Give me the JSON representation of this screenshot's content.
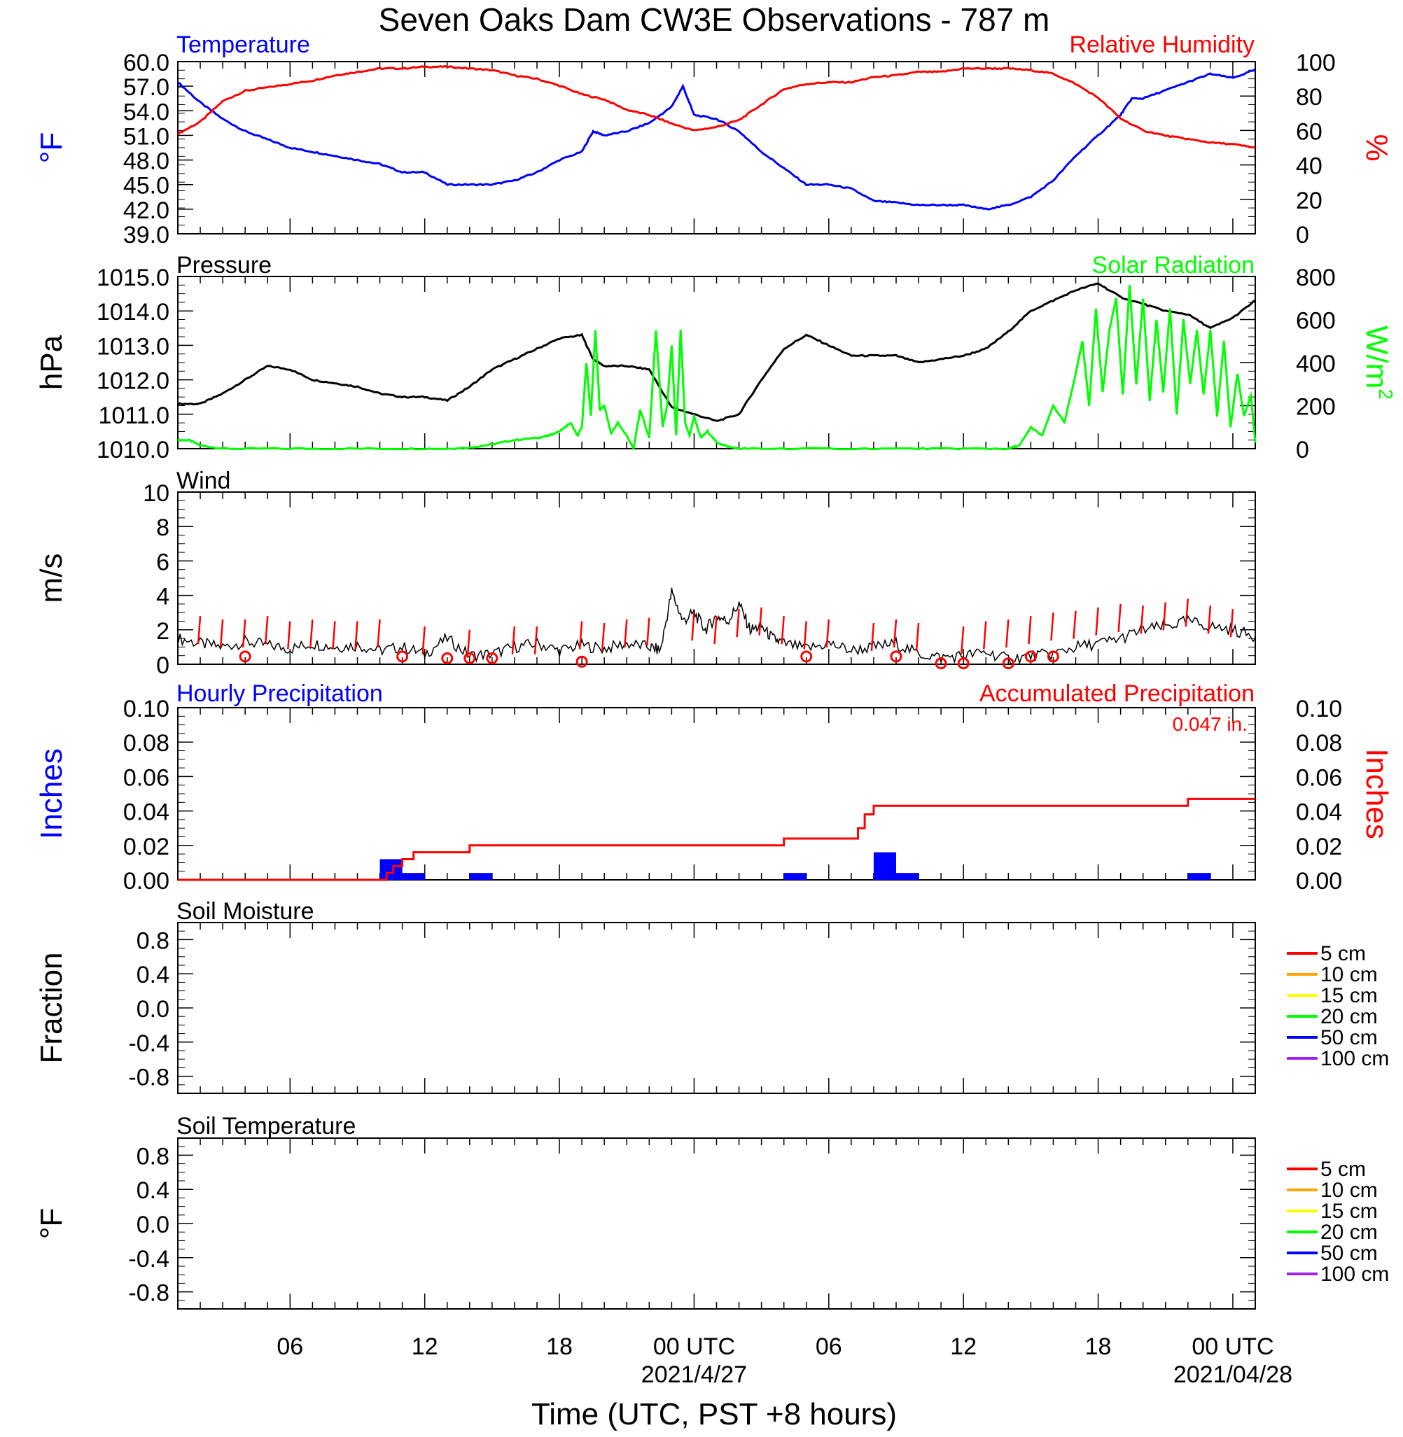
{
  "figure": {
    "title": "Seven Oaks Dam CW3E Observations - 787 m",
    "xlabel": "Time (UTC, PST +8 hours)",
    "x_ticks": [
      {
        "hour": 6,
        "label": "06",
        "sub": ""
      },
      {
        "hour": 12,
        "label": "12",
        "sub": ""
      },
      {
        "hour": 18,
        "label": "18",
        "sub": ""
      },
      {
        "hour": 24,
        "label": "00 UTC",
        "sub": "2021/4/27"
      },
      {
        "hour": 30,
        "label": "06",
        "sub": ""
      },
      {
        "hour": 36,
        "label": "12",
        "sub": ""
      },
      {
        "hour": 42,
        "label": "18",
        "sub": ""
      },
      {
        "hour": 48,
        "label": "00 UTC",
        "sub": "2021/04/28"
      }
    ],
    "x_range_hours": [
      1,
      49
    ]
  },
  "chart_data": [
    {
      "type": "line",
      "id": "temp_rh",
      "left_title": "Temperature",
      "right_title": "Relative Humidity",
      "left_label": "°F",
      "right_label": "%",
      "left_color": "#0000ff",
      "right_color": "#ff0000",
      "left_ticks": [
        "60.0",
        "57.0",
        "54.0",
        "51.0",
        "48.0",
        "45.0",
        "42.0",
        "39.0"
      ],
      "right_ticks": [
        "100",
        "80",
        "60",
        "40",
        "20",
        "0"
      ],
      "ylim_left": [
        39,
        60
      ],
      "ylim_right": [
        0,
        100
      ],
      "series": [
        {
          "name": "Temperature",
          "axis": "left",
          "color": "#0000ff",
          "x": [
            1,
            2,
            3,
            4,
            5,
            6,
            7,
            8,
            9,
            10,
            11,
            12,
            13,
            14,
            15,
            16,
            17,
            18,
            19,
            19.5,
            20,
            21,
            22,
            23,
            23.5,
            24,
            25,
            26,
            27,
            28,
            29,
            30,
            31,
            32,
            33,
            34,
            35,
            36,
            37,
            38,
            39,
            40,
            41,
            42,
            43,
            43.5,
            44,
            45,
            46,
            47,
            48,
            49
          ],
          "y": [
            57.5,
            55.0,
            53.0,
            51.5,
            50.5,
            49.5,
            49.0,
            48.5,
            48.0,
            47.5,
            46.5,
            46.5,
            45.0,
            45.0,
            45.0,
            45.5,
            46.5,
            48.0,
            49.0,
            51.5,
            51.0,
            51.5,
            52.5,
            54.5,
            57.0,
            53.5,
            53.0,
            51.5,
            49.0,
            47.0,
            45.0,
            45.0,
            44.5,
            43.0,
            42.8,
            42.5,
            42.5,
            42.5,
            42.0,
            42.5,
            43.5,
            45.5,
            48.5,
            51.0,
            53.5,
            55.5,
            55.5,
            56.5,
            57.5,
            58.5,
            58.0,
            59.0
          ]
        },
        {
          "name": "Relative Humidity",
          "axis": "right",
          "color": "#ff0000",
          "x": [
            1,
            2,
            3,
            4,
            5,
            6,
            7,
            8,
            9,
            10,
            11,
            12,
            13,
            14,
            15,
            16,
            17,
            18,
            19,
            20,
            21,
            22,
            23,
            24,
            25,
            26,
            27,
            28,
            29,
            30,
            31,
            32,
            33,
            34,
            35,
            36,
            37,
            38,
            39,
            40,
            41,
            42,
            43,
            44,
            45,
            46,
            47,
            48,
            49
          ],
          "y": [
            58,
            65,
            77,
            83,
            85,
            87,
            89,
            92,
            94,
            96,
            96,
            97,
            97,
            96,
            95,
            92,
            90,
            86,
            81,
            78,
            72,
            69,
            64,
            60,
            62,
            66,
            75,
            84,
            87,
            88,
            88,
            91,
            92,
            94,
            94,
            96,
            96,
            96,
            95,
            93,
            87,
            79,
            67,
            60,
            57,
            55,
            53,
            52,
            50
          ]
        }
      ]
    },
    {
      "type": "line",
      "id": "pressure_solar",
      "left_title": "Pressure",
      "right_title": "Solar Radiation",
      "left_label": "hPa",
      "right_label": "W/m",
      "right_label_sup": "2",
      "left_color": "#000000",
      "right_color": "#00ff00",
      "left_ticks": [
        "1015.0",
        "1014.0",
        "1013.0",
        "1012.0",
        "1011.0",
        "1010.0"
      ],
      "right_ticks": [
        "800",
        "600",
        "400",
        "200",
        "0"
      ],
      "ylim_left": [
        1010,
        1015
      ],
      "ylim_right": [
        0,
        800
      ],
      "series": [
        {
          "name": "Pressure",
          "axis": "left",
          "color": "#000000",
          "x": [
            1,
            2,
            3,
            4,
            5,
            6,
            7,
            8,
            9,
            10,
            11,
            12,
            13,
            14,
            15,
            16,
            17,
            18,
            19,
            19.5,
            20,
            21,
            22,
            23,
            24,
            25,
            26,
            27,
            28,
            29,
            30,
            31,
            32,
            33,
            34,
            35,
            36,
            37,
            38,
            39,
            40,
            41,
            42,
            43,
            44,
            45,
            46,
            47,
            48,
            49
          ],
          "y": [
            1011.3,
            1011.3,
            1011.6,
            1012.0,
            1012.4,
            1012.3,
            1012.0,
            1011.9,
            1011.8,
            1011.6,
            1011.5,
            1011.5,
            1011.4,
            1011.8,
            1012.3,
            1012.6,
            1012.9,
            1013.2,
            1013.3,
            1012.6,
            1012.4,
            1012.4,
            1012.3,
            1011.2,
            1011.0,
            1010.8,
            1011.0,
            1012.0,
            1012.9,
            1013.3,
            1013.0,
            1012.7,
            1012.7,
            1012.7,
            1012.5,
            1012.6,
            1012.7,
            1012.9,
            1013.4,
            1014.0,
            1014.3,
            1014.6,
            1014.8,
            1014.4,
            1014.2,
            1014.0,
            1013.9,
            1013.5,
            1013.8,
            1014.3
          ]
        },
        {
          "name": "Solar Radiation",
          "axis": "right",
          "color": "#00ff00",
          "x": [
            1,
            1.5,
            2,
            3,
            5,
            8,
            11,
            13,
            14,
            15,
            16,
            17,
            17.5,
            18,
            18.5,
            18.8,
            19,
            19.2,
            19.4,
            19.6,
            19.8,
            20,
            20.3,
            20.6,
            21,
            21.3,
            21.6,
            22,
            22.3,
            22.6,
            22.8,
            23,
            23.2,
            23.4,
            23.6,
            23.8,
            24,
            24.3,
            24.6,
            25,
            25.5,
            26,
            27,
            30,
            34,
            36,
            38,
            38.5,
            39,
            39.5,
            40,
            40.5,
            41,
            41.3,
            41.6,
            41.9,
            42.2,
            42.5,
            42.8,
            43.1,
            43.4,
            43.7,
            44,
            44.3,
            44.6,
            44.9,
            45.2,
            45.5,
            45.8,
            46.1,
            46.4,
            46.7,
            47,
            47.3,
            47.6,
            47.9,
            48.2,
            48.5,
            48.8,
            49
          ],
          "y": [
            40,
            40,
            15,
            0,
            0,
            0,
            0,
            0,
            5,
            20,
            40,
            50,
            60,
            80,
            120,
            60,
            100,
            400,
            150,
            550,
            180,
            200,
            70,
            120,
            60,
            0,
            180,
            50,
            550,
            100,
            200,
            480,
            60,
            550,
            120,
            60,
            150,
            50,
            80,
            30,
            10,
            0,
            0,
            0,
            0,
            0,
            0,
            15,
            100,
            60,
            200,
            120,
            350,
            500,
            200,
            650,
            260,
            550,
            700,
            250,
            760,
            300,
            700,
            220,
            600,
            260,
            650,
            160,
            600,
            300,
            550,
            250,
            550,
            150,
            500,
            100,
            350,
            150,
            250,
            30
          ]
        }
      ]
    },
    {
      "type": "line",
      "id": "wind",
      "left_title": "Wind",
      "left_label": "m/s",
      "left_ticks": [
        "10",
        "8",
        "6",
        "4",
        "2",
        "0"
      ],
      "ylim": [
        0,
        10
      ],
      "series": [
        {
          "name": "Wind",
          "color": "#000000",
          "x": [
            1,
            2,
            3,
            4,
            5,
            6,
            7,
            8,
            9,
            10,
            11,
            12,
            13,
            14,
            15,
            16,
            17,
            18,
            19,
            20,
            21,
            22,
            22.5,
            23,
            23.5,
            24,
            24.5,
            25,
            25.5,
            26,
            26.5,
            27,
            27.5,
            28,
            29,
            30,
            31,
            32,
            33,
            34,
            35,
            36,
            37,
            38,
            39,
            40,
            41,
            42,
            43,
            44,
            45,
            46,
            47,
            48,
            49
          ],
          "y": [
            1.5,
            1.2,
            1.0,
            1.3,
            1.1,
            0.9,
            1.2,
            1.0,
            1.1,
            0.8,
            1.0,
            0.6,
            1.5,
            0.5,
            0.6,
            1.0,
            1.2,
            0.8,
            1.1,
            0.9,
            1.2,
            1.0,
            0.8,
            4.2,
            2.5,
            3.0,
            2.0,
            2.8,
            2.5,
            3.5,
            2.0,
            2.2,
            1.5,
            1.2,
            0.9,
            1.2,
            0.8,
            1.0,
            1.2,
            0.6,
            0.4,
            0.5,
            0.7,
            0.3,
            0.5,
            0.6,
            1.0,
            1.2,
            1.5,
            2.0,
            2.2,
            2.5,
            2.2,
            2.0,
            1.6
          ]
        },
        {
          "name": "Wind barbs",
          "color": "#ff0000",
          "style": "barb",
          "x": [
            2,
            3,
            4,
            5,
            6,
            7,
            8,
            9,
            10,
            12,
            14,
            16,
            17,
            19,
            20,
            21,
            22,
            24,
            25,
            26,
            27,
            28,
            29,
            30,
            32,
            33,
            34,
            36,
            37,
            38,
            39,
            40,
            41,
            42,
            43,
            44,
            45,
            46,
            47,
            48
          ],
          "y": [
            2.8,
            2.6,
            2.6,
            2.8,
            2.5,
            2.6,
            2.5,
            2.5,
            2.6,
            2.2,
            2.0,
            2.2,
            2.2,
            2.5,
            2.4,
            2.6,
            2.7,
            3.0,
            2.8,
            3.2,
            3.3,
            2.8,
            2.5,
            2.6,
            2.4,
            2.6,
            2.4,
            2.2,
            2.5,
            2.6,
            2.8,
            3.0,
            3.1,
            3.3,
            3.5,
            3.4,
            3.6,
            3.8,
            3.4,
            3.2
          ]
        },
        {
          "name": "Calm",
          "color": "#ff0000",
          "style": "circle",
          "x": [
            4,
            11,
            13,
            14,
            15,
            19,
            29,
            33,
            35,
            36,
            38,
            39,
            40
          ],
          "y": [
            0.45,
            0.45,
            0.35,
            0.35,
            0.35,
            0.15,
            0.45,
            0.45,
            0.05,
            0.05,
            0.05,
            0.45,
            0.45
          ]
        }
      ]
    },
    {
      "type": "bar",
      "id": "precip",
      "left_title": "Hourly Precipitation",
      "right_title": "Accumulated Precipitation",
      "annotation": "0.047 in.",
      "left_label": "Inches",
      "right_label": "Inches",
      "left_color": "#0000ff",
      "right_color": "#ff0000",
      "left_ticks": [
        "0.10",
        "0.08",
        "0.06",
        "0.04",
        "0.02",
        "0.00"
      ],
      "right_ticks": [
        "0.10",
        "0.08",
        "0.06",
        "0.04",
        "0.02",
        "0.00"
      ],
      "ylim": [
        0,
        0.1
      ],
      "series": [
        {
          "name": "Hourly Precipitation",
          "color": "#0000ff",
          "x": [
            10,
            11,
            14,
            28,
            32,
            33,
            46
          ],
          "y": [
            0.012,
            0.004,
            0.004,
            0.004,
            0.016,
            0.004,
            0.004
          ]
        },
        {
          "name": "Accumulated Precipitation",
          "color": "#ff0000",
          "style": "step",
          "x": [
            1,
            10,
            10.3,
            10.6,
            11,
            11.5,
            14,
            28,
            31.3,
            31.6,
            32,
            33,
            46,
            49
          ],
          "y": [
            0,
            0,
            0.004,
            0.008,
            0.012,
            0.016,
            0.02,
            0.024,
            0.03,
            0.038,
            0.043,
            0.043,
            0.047,
            0.047
          ]
        }
      ]
    },
    {
      "type": "line",
      "id": "soil_moisture",
      "left_title": "Soil Moisture",
      "left_label": "Fraction",
      "left_ticks": [
        "0.8",
        "0.4",
        "0.0",
        "-0.4",
        "-0.8"
      ],
      "ylim": [
        -1,
        1
      ],
      "legend": [
        {
          "label": "5 cm",
          "color": "#ff0000"
        },
        {
          "label": "10 cm",
          "color": "#ffa500"
        },
        {
          "label": "15 cm",
          "color": "#ffff00"
        },
        {
          "label": "20 cm",
          "color": "#00ff00"
        },
        {
          "label": "50 cm",
          "color": "#0000ff"
        },
        {
          "label": "100 cm",
          "color": "#a020f0"
        }
      ],
      "series": []
    },
    {
      "type": "line",
      "id": "soil_temperature",
      "left_title": "Soil Temperature",
      "left_label": "°F",
      "left_ticks": [
        "0.8",
        "0.4",
        "0.0",
        "-0.4",
        "-0.8"
      ],
      "ylim": [
        -1,
        1
      ],
      "legend": [
        {
          "label": "5 cm",
          "color": "#ff0000"
        },
        {
          "label": "10 cm",
          "color": "#ffa500"
        },
        {
          "label": "15 cm",
          "color": "#ffff00"
        },
        {
          "label": "20 cm",
          "color": "#00ff00"
        },
        {
          "label": "50 cm",
          "color": "#0000ff"
        },
        {
          "label": "100 cm",
          "color": "#a020f0"
        }
      ],
      "series": []
    }
  ]
}
